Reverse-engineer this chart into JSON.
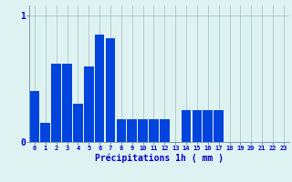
{
  "xlabel": "Précipitations 1h ( mm )",
  "bar_color": "#0044dd",
  "background_color": "#dff2f2",
  "grid_color": "#aac8c8",
  "axis_color": "#7799aa",
  "text_color": "#0000cc",
  "categories": [
    0,
    1,
    2,
    3,
    4,
    5,
    6,
    7,
    8,
    9,
    10,
    11,
    12,
    13,
    14,
    15,
    16,
    17,
    18,
    19,
    20,
    21,
    22,
    23
  ],
  "values": [
    0.4,
    0.15,
    0.62,
    0.62,
    0.3,
    0.6,
    0.85,
    0.82,
    0.18,
    0.18,
    0.18,
    0.18,
    0.18,
    0.0,
    0.25,
    0.25,
    0.25,
    0.25,
    0.0,
    0.0,
    0.0,
    0.0,
    0.0,
    0.0
  ],
  "ylim": [
    0,
    1.08
  ],
  "yticks": [
    0,
    1
  ],
  "xlabel_fontsize": 7,
  "ytick_fontsize": 7,
  "xtick_fontsize": 5
}
